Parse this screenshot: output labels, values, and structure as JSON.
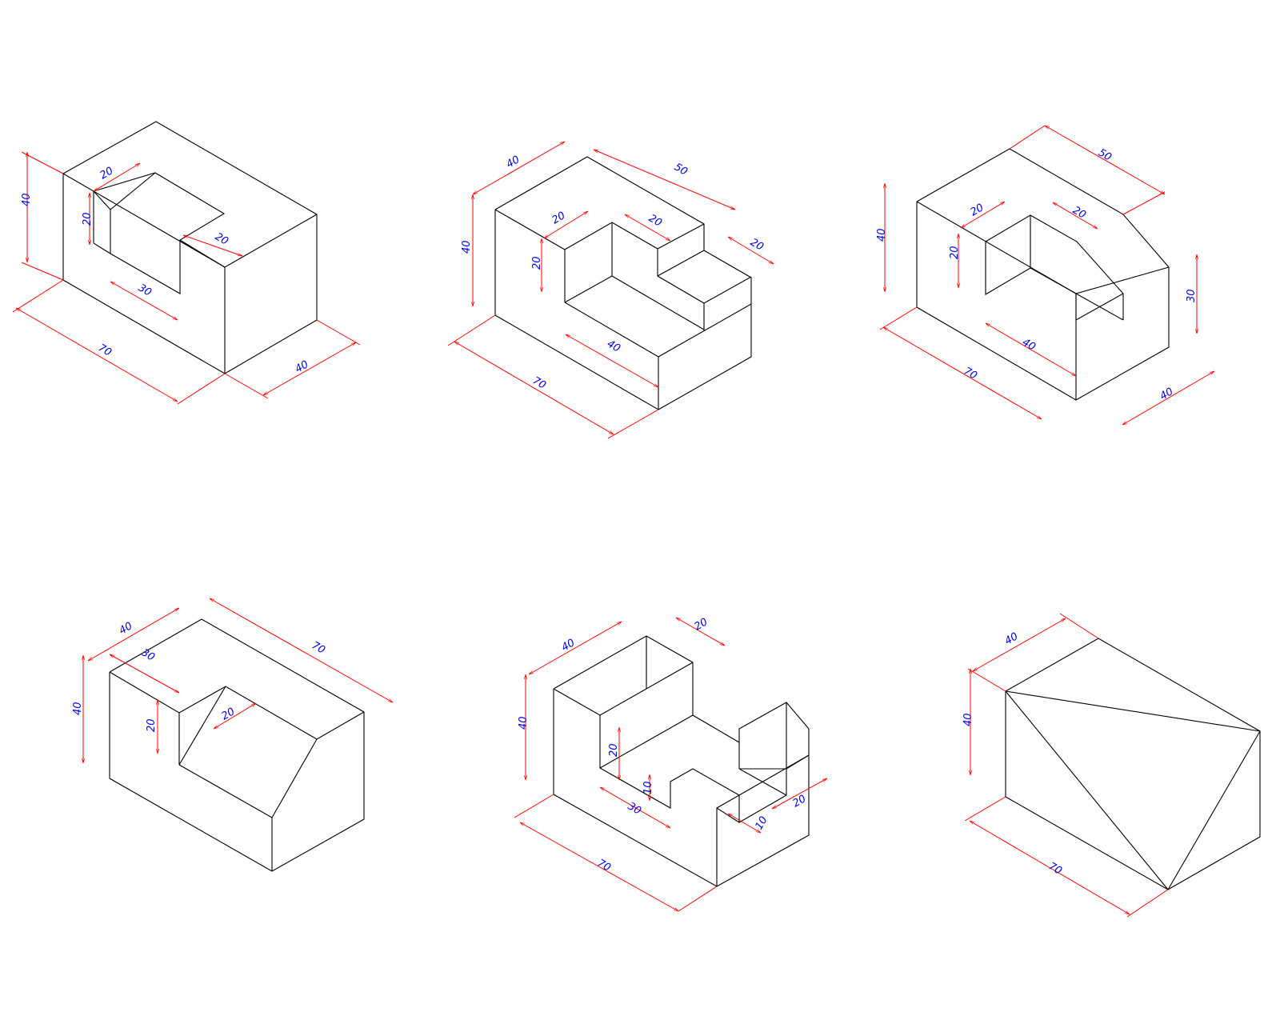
{
  "colors": {
    "edge": "#000000",
    "dimension_line": "#ff0000",
    "dimension_text": "#0000ee",
    "background": "#ffffff"
  },
  "drawings": [
    {
      "id": 1,
      "dims": [
        "40",
        "20",
        "20",
        "20",
        "30",
        "70",
        "40"
      ]
    },
    {
      "id": 2,
      "dims": [
        "40",
        "50",
        "40",
        "20",
        "20",
        "20",
        "20",
        "40",
        "70"
      ]
    },
    {
      "id": 3,
      "dims": [
        "50",
        "40",
        "20",
        "20",
        "20",
        "30",
        "40",
        "70",
        "40"
      ]
    },
    {
      "id": 4,
      "dims": [
        "40",
        "70",
        "30",
        "40",
        "20",
        "20"
      ]
    },
    {
      "id": 5,
      "dims": [
        "40",
        "20",
        "40",
        "20",
        "10",
        "30",
        "20",
        "10",
        "70"
      ]
    },
    {
      "id": 6,
      "dims": [
        "40",
        "40",
        "70"
      ]
    }
  ]
}
